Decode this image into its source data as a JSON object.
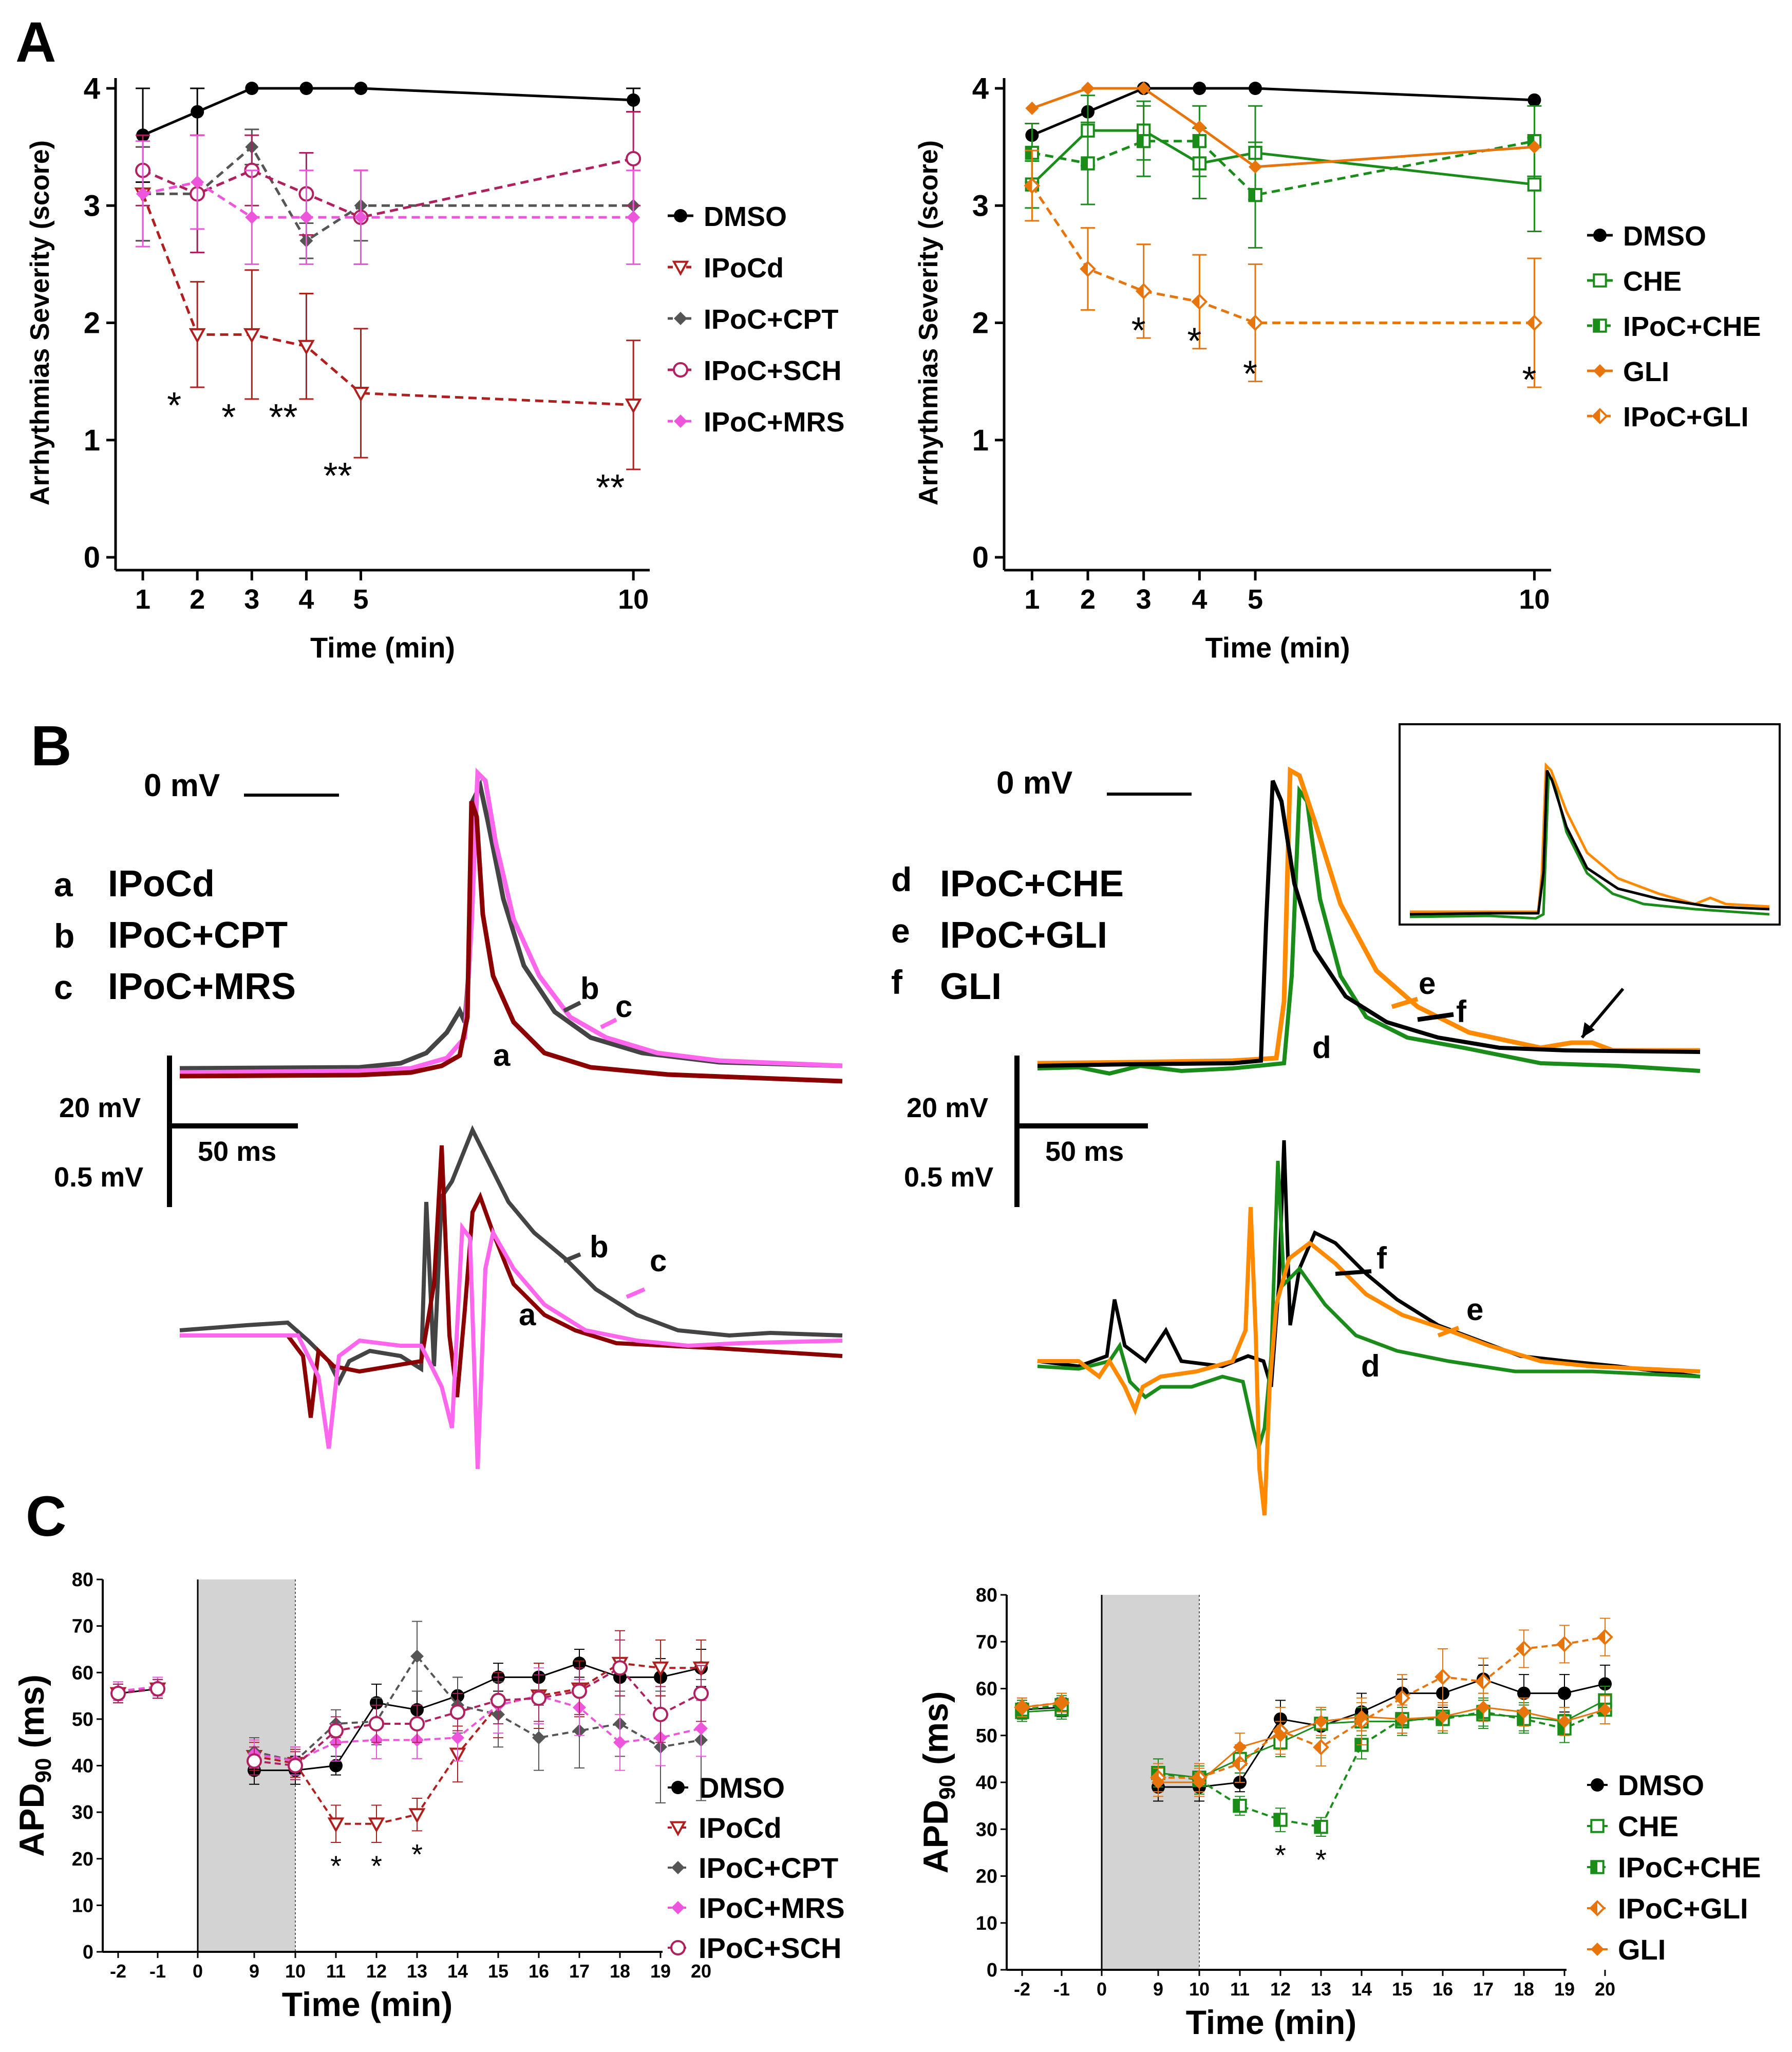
{
  "panels": {
    "A": "A",
    "B": "B",
    "C": "C"
  },
  "colors": {
    "dmso": "#000000",
    "ipocd": "#b01e1e",
    "cpt": "#555555",
    "sch": "#b0205e",
    "mrs": "#ee55dd",
    "che": "#1a8c1a",
    "gli": "#e8740c",
    "trace_a": "#8b0000",
    "trace_b": "#444444",
    "trace_c": "#ff66ee",
    "trace_d": "#1a8c1a",
    "trace_e": "#ff8a00",
    "trace_f": "#000000"
  },
  "chart_data": [
    {
      "id": "A-left",
      "type": "line",
      "title": "",
      "xlabel": "Time (min)",
      "ylabel": "Arrhythmias Severity  (score)",
      "x_ticks": [
        "1",
        "2",
        "3",
        "4",
        "5",
        "10"
      ],
      "x": [
        1,
        2,
        3,
        4,
        5,
        10
      ],
      "y_ticks": [
        "0",
        "1",
        "2",
        "3",
        "4"
      ],
      "ylim": [
        0,
        4
      ],
      "series": [
        {
          "key": "dmso",
          "name": "DMSO",
          "marker": "circle-filled",
          "dashed": false,
          "values": [
            3.6,
            3.8,
            4.0,
            4.0,
            4.0,
            3.9
          ],
          "err": [
            0.4,
            0.2,
            0,
            0,
            0,
            0.1
          ]
        },
        {
          "key": "ipocd",
          "name": "IPoCd",
          "marker": "tri-open",
          "dashed": true,
          "values": [
            3.1,
            1.9,
            1.9,
            1.8,
            1.4,
            1.3
          ],
          "err": [
            0.4,
            0.45,
            0.55,
            0.45,
            0.55,
            0.55
          ]
        },
        {
          "key": "cpt",
          "name": "IPoC+CPT",
          "marker": "diamond-filled",
          "dashed": true,
          "values": [
            3.1,
            3.1,
            3.5,
            2.7,
            3.0,
            3.0
          ],
          "err": [
            0.4,
            0.5,
            0.15,
            0.15,
            0.3,
            0
          ]
        },
        {
          "key": "sch",
          "name": "IPoC+SCH",
          "marker": "circle-open",
          "dashed": true,
          "values": [
            3.3,
            3.1,
            3.3,
            3.1,
            2.9,
            3.4
          ],
          "err": [
            0.3,
            0.5,
            0.3,
            0.35,
            0.4,
            0.4
          ]
        },
        {
          "key": "mrs",
          "name": "IPoC+MRS",
          "marker": "diamond-filled",
          "dashed": true,
          "values": [
            3.1,
            3.2,
            2.9,
            2.9,
            2.9,
            2.9
          ],
          "err": [
            0.45,
            0.4,
            0.4,
            0.4,
            0.4,
            0.4
          ]
        }
      ],
      "annotations": [
        {
          "x": 2,
          "text": "*"
        },
        {
          "x": 3,
          "text": "*"
        },
        {
          "x": 4,
          "text": "**"
        },
        {
          "x": 5,
          "text": "**"
        },
        {
          "x": 10,
          "text": "**"
        }
      ]
    },
    {
      "id": "A-right",
      "type": "line",
      "title": "",
      "xlabel": "Time (min)",
      "ylabel": "Arrhythmias Severity  (score)",
      "x_ticks": [
        "1",
        "2",
        "3",
        "4",
        "5",
        "10"
      ],
      "x": [
        1,
        2,
        3,
        4,
        5,
        10
      ],
      "y_ticks": [
        "0",
        "1",
        "2",
        "3",
        "4"
      ],
      "ylim": [
        0,
        4
      ],
      "series": [
        {
          "key": "dmso",
          "name": "DMSO",
          "marker": "circle-filled",
          "dashed": false,
          "values": [
            3.6,
            3.8,
            4.0,
            4.0,
            4.0,
            3.9
          ],
          "err": [
            0,
            0,
            0,
            0,
            0,
            0
          ]
        },
        {
          "key": "che",
          "name": "CHE",
          "marker": "square-open",
          "dashed": false,
          "values": [
            3.18,
            3.64,
            3.64,
            3.36,
            3.45,
            3.18
          ],
          "err": [
            0.2,
            0.3,
            0.25,
            0.3,
            0.4,
            0.4
          ]
        },
        {
          "key": "ipocche",
          "name": "IPoC+CHE",
          "marker": "square-half",
          "dashed": true,
          "values": [
            3.45,
            3.36,
            3.55,
            3.55,
            3.09,
            3.55
          ],
          "err": [
            0.25,
            0.35,
            0.3,
            0.3,
            0.45,
            0.3
          ]
        },
        {
          "key": "gli",
          "name": "GLI",
          "marker": "diamond-filled",
          "dashed": false,
          "values": [
            3.83,
            4.0,
            4.0,
            3.67,
            3.33,
            3.5
          ],
          "err": [
            0,
            0,
            0,
            0,
            0,
            0
          ]
        },
        {
          "key": "ipocgli",
          "name": "IPoC+GLI",
          "marker": "diamond-half",
          "dashed": true,
          "values": [
            3.17,
            2.46,
            2.27,
            2.18,
            2.0,
            2.0
          ],
          "err": [
            0.3,
            0.35,
            0.4,
            0.4,
            0.5,
            0.55
          ]
        }
      ],
      "annotations": [
        {
          "x": 3,
          "text": "*"
        },
        {
          "x": 4,
          "text": "*"
        },
        {
          "x": 5,
          "text": "*"
        },
        {
          "x": 10,
          "text": "*"
        }
      ]
    },
    {
      "id": "C-left",
      "type": "line",
      "xlabel": "Time (min)",
      "ylabel": "APD",
      "ylabel_sub": "90",
      "ylabel_unit": " (ms)",
      "x_ticks": [
        "-2",
        "-1",
        "0",
        "9",
        "10",
        "11",
        "12",
        "13",
        "14",
        "15",
        "16",
        "17",
        "18",
        "19",
        "20"
      ],
      "y_ticks": [
        "0",
        "10",
        "20",
        "30",
        "40",
        "50",
        "60",
        "70",
        "80"
      ],
      "ylim": [
        0,
        80
      ],
      "shaded_region": [
        "0",
        "10"
      ],
      "series": [
        {
          "key": "dmso",
          "name": "DMSO",
          "marker": "circle-filled",
          "dashed": false,
          "x": [
            "-2",
            "-1",
            "9",
            "10",
            "11",
            "12",
            "13",
            "14",
            "15",
            "16",
            "17",
            "18",
            "19",
            "20"
          ],
          "values": [
            55.5,
            56.5,
            39,
            39,
            40,
            53.5,
            52,
            55,
            59,
            59,
            62,
            59,
            59,
            61
          ],
          "err": [
            2,
            2,
            3,
            3,
            2,
            4,
            4,
            4,
            3,
            3,
            3,
            4,
            4,
            4
          ]
        },
        {
          "key": "ipocd",
          "name": "IPoCd",
          "marker": "tri-open",
          "dashed": true,
          "x": [
            "-2",
            "-1",
            "9",
            "10",
            "11",
            "12",
            "13",
            "14",
            "15",
            "16",
            "17",
            "18",
            "19",
            "20"
          ],
          "values": [
            55.5,
            56.5,
            42,
            40.5,
            27.5,
            27.5,
            29.5,
            42.5,
            53,
            55,
            56.5,
            62,
            61,
            61
          ],
          "err": [
            2,
            2,
            3,
            3,
            4,
            4,
            3.5,
            6,
            7,
            7,
            6,
            7,
            6,
            6
          ]
        },
        {
          "key": "cpt",
          "name": "IPoC+CPT",
          "marker": "diamond-filled",
          "dashed": true,
          "x": [
            "-2",
            "-1",
            "9",
            "10",
            "11",
            "12",
            "13",
            "14",
            "15",
            "16",
            "17",
            "18",
            "19",
            "20"
          ],
          "values": [
            56,
            56.5,
            43,
            41,
            49,
            49.5,
            63.5,
            53,
            51,
            46,
            47.5,
            49,
            44,
            45.5
          ],
          "err": [
            2,
            2,
            3,
            3,
            3,
            5,
            7.5,
            6,
            7,
            7,
            8,
            7,
            12,
            13
          ]
        },
        {
          "key": "mrs",
          "name": "IPoC+MRS",
          "marker": "diamond-filled",
          "dashed": true,
          "x": [
            "-2",
            "-1",
            "9",
            "10",
            "11",
            "12",
            "13",
            "14",
            "15",
            "16",
            "17",
            "18",
            "19",
            "20"
          ],
          "values": [
            56,
            57,
            42.5,
            41,
            45,
            45.5,
            45.5,
            46,
            53,
            55,
            52.5,
            45,
            46,
            48
          ],
          "err": [
            2,
            2,
            3,
            3,
            4,
            4,
            4,
            5,
            6,
            6,
            6,
            6,
            6,
            6
          ]
        },
        {
          "key": "sch",
          "name": "IPoC+SCH",
          "marker": "circle-open",
          "dashed": true,
          "x": [
            "-2",
            "-1",
            "9",
            "10",
            "11",
            "12",
            "13",
            "14",
            "15",
            "16",
            "17",
            "18",
            "19",
            "20"
          ],
          "values": [
            55.5,
            56.5,
            41,
            40,
            47.5,
            49,
            49,
            51.5,
            54,
            54.5,
            56,
            61,
            51,
            55.5
          ],
          "err": [
            2,
            2,
            3,
            3,
            3,
            4,
            4,
            4,
            5,
            5,
            5,
            6,
            6,
            6
          ]
        }
      ],
      "annotations": [
        {
          "x": "11",
          "text": "*"
        },
        {
          "x": "12",
          "text": "*"
        },
        {
          "x": "13",
          "text": "*"
        }
      ]
    },
    {
      "id": "C-right",
      "type": "line",
      "xlabel": "Time (min)",
      "ylabel": "APD",
      "ylabel_sub": "90",
      "ylabel_unit": " (ms)",
      "x_ticks": [
        "-2",
        "-1",
        "0",
        "9",
        "10",
        "11",
        "12",
        "13",
        "14",
        "15",
        "16",
        "17",
        "18",
        "19",
        "20"
      ],
      "y_ticks": [
        "0",
        "10",
        "20",
        "30",
        "40",
        "50",
        "60",
        "70",
        "80"
      ],
      "ylim": [
        0,
        80
      ],
      "shaded_region": [
        "0",
        "10"
      ],
      "series": [
        {
          "key": "dmso",
          "name": "DMSO",
          "marker": "circle-filled",
          "dashed": false,
          "x": [
            "-2",
            "-1",
            "9",
            "10",
            "11",
            "12",
            "13",
            "14",
            "15",
            "16",
            "17",
            "18",
            "19",
            "20"
          ],
          "values": [
            55.5,
            56,
            39,
            39,
            40,
            53.5,
            52,
            55,
            59,
            59,
            62,
            59,
            59,
            61
          ],
          "err": [
            2,
            2,
            3,
            3,
            2,
            4,
            4,
            4,
            3,
            3,
            3,
            4,
            4,
            4
          ]
        },
        {
          "key": "che",
          "name": "CHE",
          "marker": "square-open",
          "dashed": false,
          "x": [
            "-2",
            "-1",
            "9",
            "10",
            "11",
            "12",
            "13",
            "14",
            "15",
            "16",
            "17",
            "18",
            "19",
            "20"
          ],
          "values": [
            55,
            55.5,
            42,
            41,
            45,
            48.5,
            52.5,
            53,
            53,
            54,
            54.5,
            54,
            53,
            57.5
          ],
          "err": [
            2,
            2,
            3,
            3,
            3,
            3,
            3,
            3,
            3,
            3,
            3,
            3,
            3,
            3
          ]
        },
        {
          "key": "ipocche",
          "name": "IPoC+CHE",
          "marker": "square-half",
          "dashed": true,
          "x": [
            "-2",
            "-1",
            "9",
            "10",
            "11",
            "12",
            "13",
            "14",
            "15",
            "16",
            "17",
            "18",
            "19",
            "20"
          ],
          "values": [
            55.5,
            56.5,
            42,
            40.5,
            35,
            32,
            30.5,
            48,
            53.5,
            53.5,
            55,
            53.5,
            51.5,
            55.5
          ],
          "err": [
            2,
            2,
            3,
            3,
            2,
            2.5,
            2,
            3,
            3,
            3,
            3,
            3,
            3,
            3
          ]
        },
        {
          "key": "ipocgli",
          "name": "IPoC+GLI",
          "marker": "diamond-half",
          "dashed": true,
          "x": [
            "-2",
            "-1",
            "9",
            "10",
            "11",
            "12",
            "13",
            "14",
            "15",
            "16",
            "17",
            "18",
            "19",
            "20"
          ],
          "values": [
            56,
            57,
            41,
            41,
            44,
            51,
            47.5,
            53,
            58,
            62.5,
            61.5,
            68.5,
            69.5,
            71
          ],
          "err": [
            2,
            2,
            3,
            3,
            4,
            5,
            4,
            5,
            5,
            6,
            5,
            4,
            4,
            4
          ]
        },
        {
          "key": "gli",
          "name": "GLI",
          "marker": "diamond-filled",
          "dashed": false,
          "x": [
            "-2",
            "-1",
            "9",
            "10",
            "11",
            "12",
            "13",
            "14",
            "15",
            "16",
            "17",
            "18",
            "19",
            "20"
          ],
          "values": [
            56,
            57,
            40,
            40,
            47.5,
            50,
            53,
            54,
            53.5,
            54,
            56,
            55,
            53,
            55.5
          ],
          "err": [
            2,
            2,
            3,
            3,
            3,
            3,
            3,
            3,
            3,
            3,
            3,
            3,
            3,
            3
          ]
        }
      ],
      "annotations": [
        {
          "x": "12",
          "text": "*"
        },
        {
          "x": "13",
          "text": "*"
        }
      ]
    }
  ],
  "panelB": {
    "zero_mv": "0 mV",
    "scale_v1": "20 mV",
    "scale_v2": "0.5 mV",
    "scale_t": "50 ms",
    "left_legend": [
      {
        "letter": "a",
        "name": "IPoCd"
      },
      {
        "letter": "b",
        "name": "IPoC+CPT"
      },
      {
        "letter": "c",
        "name": "IPoC+MRS"
      }
    ],
    "right_legend": [
      {
        "letter": "d",
        "name": "IPoC+CHE"
      },
      {
        "letter": "e",
        "name": "IPoC+GLI"
      },
      {
        "letter": "f",
        "name": "GLI"
      }
    ],
    "trace_labels": {
      "a": "a",
      "b": "b",
      "c": "c",
      "d": "d",
      "e": "e",
      "f": "f"
    }
  }
}
